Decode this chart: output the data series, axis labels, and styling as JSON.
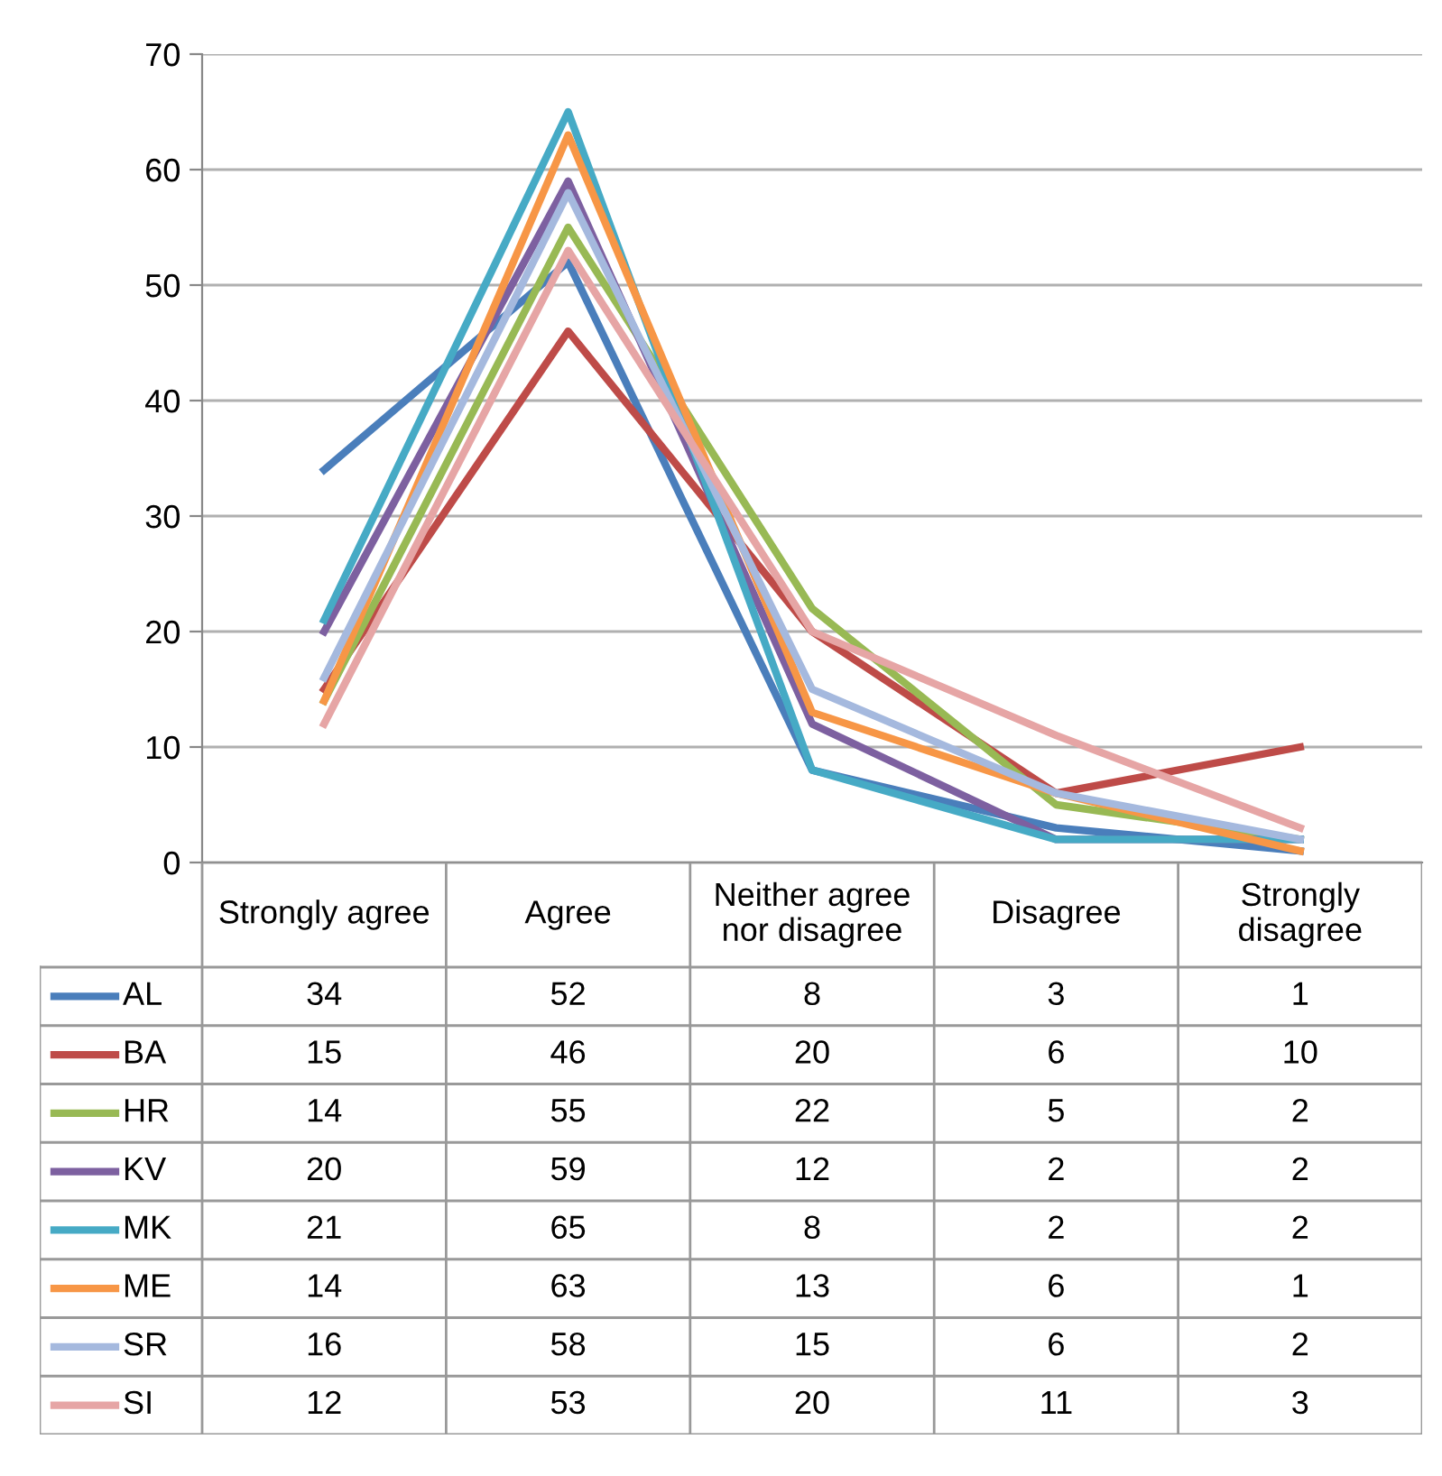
{
  "chart_data": {
    "type": "line",
    "categories": [
      "Strongly agree",
      "Agree",
      "Neither agree\nnor disagree",
      "Disagree",
      "Strongly\ndisagree"
    ],
    "ylim": [
      0,
      70
    ],
    "yticks": [
      0,
      10,
      20,
      30,
      40,
      50,
      60,
      70
    ],
    "grid": "y",
    "legend": "bottom left",
    "data_labels": true,
    "marker": "none",
    "line_style": "solid",
    "series": [
      {
        "name": "AL",
        "color": "#4a7ebb",
        "values": [
          34,
          52,
          8,
          3,
          1
        ]
      },
      {
        "name": "BA",
        "color": "#be4b48",
        "values": [
          15,
          46,
          20,
          6,
          10
        ]
      },
      {
        "name": "HR",
        "color": "#98b954",
        "values": [
          14,
          55,
          22,
          5,
          2
        ]
      },
      {
        "name": "KV",
        "color": "#7d60a0",
        "values": [
          20,
          59,
          12,
          2,
          2
        ]
      },
      {
        "name": "MK",
        "color": "#46aac5",
        "values": [
          21,
          65,
          8,
          2,
          2
        ]
      },
      {
        "name": "ME",
        "color": "#f79646",
        "values": [
          14,
          63,
          13,
          6,
          1
        ]
      },
      {
        "name": "SR",
        "color": "#a5b9de",
        "values": [
          16,
          58,
          15,
          6,
          2
        ]
      },
      {
        "name": "SI",
        "color": "#e6a5a5",
        "values": [
          12,
          53,
          20,
          11,
          3
        ]
      }
    ]
  }
}
